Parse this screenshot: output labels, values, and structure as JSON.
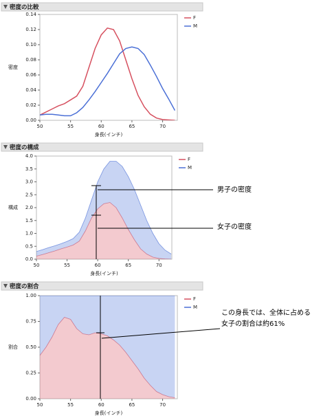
{
  "chart_data": [
    {
      "type": "line",
      "title": "密度の比較",
      "xlabel": "身長(インチ)",
      "ylabel": "密度",
      "x": [
        50,
        51,
        52,
        53,
        54,
        55,
        56,
        57,
        58,
        59,
        60,
        61,
        62,
        63,
        64,
        65,
        66,
        67,
        68,
        69,
        70,
        71,
        72
      ],
      "series": [
        {
          "name": "F",
          "color": "#d6505f",
          "values": [
            0.007,
            0.011,
            0.015,
            0.019,
            0.022,
            0.027,
            0.032,
            0.045,
            0.07,
            0.095,
            0.113,
            0.122,
            0.12,
            0.105,
            0.08,
            0.055,
            0.033,
            0.018,
            0.008,
            0.003,
            0.001,
            0.0005,
            0
          ]
        },
        {
          "name": "M",
          "color": "#4a6fd6",
          "values": [
            0.007,
            0.008,
            0.008,
            0.007,
            0.006,
            0.006,
            0.01,
            0.017,
            0.027,
            0.038,
            0.05,
            0.062,
            0.075,
            0.088,
            0.095,
            0.097,
            0.095,
            0.087,
            0.073,
            0.058,
            0.042,
            0.028,
            0.013
          ]
        }
      ],
      "xlim": [
        50,
        72.4
      ],
      "xticks": [
        50,
        55,
        60,
        65,
        70
      ],
      "ylim": [
        0,
        0.14
      ],
      "yticks": [
        {
          "value": 0,
          "label": "0.00"
        },
        0.02,
        0.04,
        0.06,
        0.08,
        {
          "value": 0.1,
          "label": "0.10"
        },
        0.12,
        0.14
      ]
    },
    {
      "type": "stacked_area",
      "title": "密度の構成",
      "xlabel": "身長(インチ)",
      "ylabel": "構成",
      "x": [
        50,
        51,
        52,
        53,
        54,
        55,
        56,
        57,
        58,
        59,
        60,
        61,
        62,
        63,
        64,
        65,
        66,
        67,
        68,
        69,
        70,
        71,
        72
      ],
      "series": [
        {
          "name": "F",
          "color": "#d6505f",
          "values": [
            0.12,
            0.18,
            0.25,
            0.32,
            0.4,
            0.47,
            0.55,
            0.7,
            1.1,
            1.6,
            1.95,
            2.15,
            2.2,
            2.0,
            1.6,
            1.15,
            0.75,
            0.4,
            0.2,
            0.08,
            0.03,
            0.01,
            0
          ]
        },
        {
          "name": "M",
          "color": "#4a6fd6",
          "values": [
            0.18,
            0.19,
            0.2,
            0.2,
            0.2,
            0.22,
            0.25,
            0.35,
            0.5,
            0.7,
            1.05,
            1.35,
            1.6,
            1.8,
            2.0,
            2.05,
            1.95,
            1.7,
            1.3,
            0.92,
            0.57,
            0.34,
            0.2
          ]
        }
      ],
      "xlim": [
        50,
        72.1
      ],
      "xticks": [
        50,
        55,
        60,
        65,
        70
      ],
      "ylim": [
        0,
        4
      ],
      "yticks": [
        {
          "value": 0,
          "label": "0.0"
        },
        0.5,
        {
          "value": 1,
          "label": "1.0"
        },
        1.5,
        {
          "value": 2,
          "label": "2.0"
        },
        2.5,
        {
          "value": 3,
          "label": "3.0"
        },
        3.5,
        {
          "value": 4,
          "label": "4.0"
        }
      ],
      "annotations": [
        "男子の密度",
        "女子の密度"
      ]
    },
    {
      "type": "stacked_area",
      "title": "密度の割合",
      "xlabel": "身長(インチ)",
      "ylabel": "割合",
      "x": [
        50,
        51,
        52,
        53,
        54,
        55,
        56,
        57,
        58,
        59,
        60,
        61,
        62,
        63,
        64,
        65,
        66,
        67,
        68,
        69,
        70,
        71,
        72
      ],
      "series": [
        {
          "name": "F",
          "color": "#d6505f",
          "values": [
            0.42,
            0.5,
            0.6,
            0.72,
            0.79,
            0.77,
            0.68,
            0.63,
            0.62,
            0.64,
            0.63,
            0.61,
            0.57,
            0.52,
            0.45,
            0.37,
            0.29,
            0.2,
            0.13,
            0.07,
            0.04,
            0.02,
            0.01
          ]
        },
        {
          "name": "M",
          "color": "#4a6fd6",
          "values": [
            0.58,
            0.5,
            0.4,
            0.28,
            0.21,
            0.23,
            0.32,
            0.37,
            0.38,
            0.36,
            0.37,
            0.39,
            0.43,
            0.48,
            0.55,
            0.63,
            0.71,
            0.8,
            0.87,
            0.93,
            0.96,
            0.98,
            0.99
          ]
        }
      ],
      "xlim": [
        50,
        72.4
      ],
      "xticks": [
        50,
        55,
        60,
        65,
        70
      ],
      "ylim": [
        0,
        1
      ],
      "yticks": [
        {
          "value": 0,
          "label": "0.00"
        },
        0.25,
        {
          "value": 0.5,
          "label": "0.50"
        },
        0.75,
        {
          "value": 1,
          "label": "1.00"
        }
      ],
      "annotations": [
        "この身長では、全体に占める",
        "女子の割合は約61%"
      ]
    }
  ]
}
